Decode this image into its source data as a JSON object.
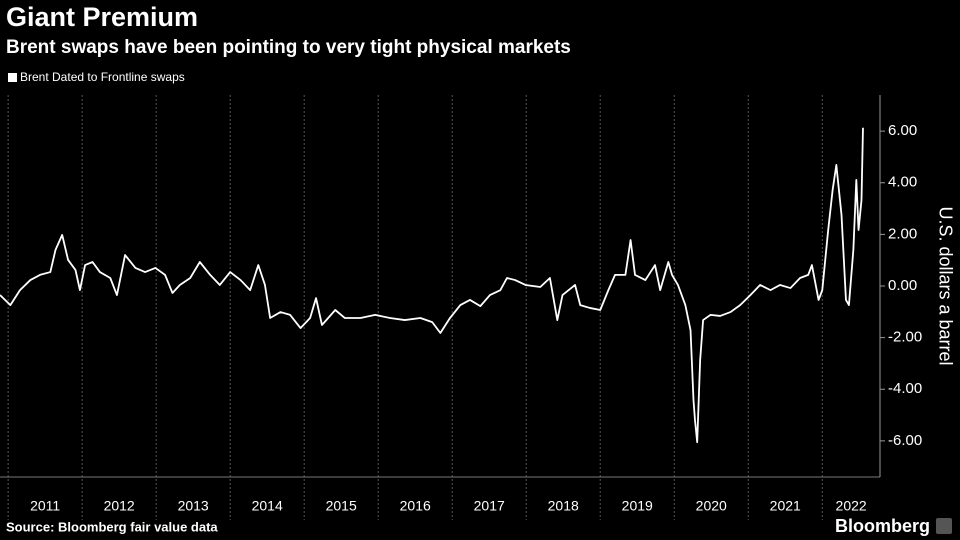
{
  "chart_data": {
    "type": "line",
    "title": "Giant Premium",
    "subtitle": "Brent swaps have been pointing to very tight physical markets",
    "y_label": "U.S. dollars a barrel",
    "source": "Source: Bloomberg fair value data",
    "logo": "Bloomberg",
    "legend": "top-left",
    "grid": true,
    "xlim": [
      2010.89,
      2022.78
    ],
    "xticks": [
      {
        "value": 2011,
        "label": "2011"
      },
      {
        "value": 2012,
        "label": "2012"
      },
      {
        "value": 2013,
        "label": "2013"
      },
      {
        "value": 2014,
        "label": "2014"
      },
      {
        "value": 2015,
        "label": "2015"
      },
      {
        "value": 2016,
        "label": "2016"
      },
      {
        "value": 2017,
        "label": "2017"
      },
      {
        "value": 2018,
        "label": "2018"
      },
      {
        "value": 2019,
        "label": "2019"
      },
      {
        "value": 2020,
        "label": "2020"
      },
      {
        "value": 2021,
        "label": "2021"
      },
      {
        "value": 2022,
        "label": "2022"
      }
    ],
    "ylim": [
      -7.4,
      7.4
    ],
    "yticks": [
      {
        "value": -6,
        "label": "-6.00"
      },
      {
        "value": -4,
        "label": "-4.00"
      },
      {
        "value": -2,
        "label": "-2.00"
      },
      {
        "value": 0,
        "label": "0.00"
      },
      {
        "value": 2,
        "label": "2.00"
      },
      {
        "value": 4,
        "label": "4.00"
      },
      {
        "value": 6,
        "label": "6.00"
      }
    ],
    "x": [
      2010.89,
      2011.03,
      2011.16,
      2011.3,
      2011.43,
      2011.57,
      2011.64,
      2011.73,
      2011.81,
      2011.91,
      2011.97,
      2012.04,
      2012.14,
      2012.24,
      2012.38,
      2012.47,
      2012.58,
      2012.72,
      2012.85,
      2012.99,
      2013.12,
      2013.22,
      2013.32,
      2013.46,
      2013.59,
      2013.73,
      2013.86,
      2014.0,
      2014.14,
      2014.27,
      2014.38,
      2014.47,
      2014.54,
      2014.68,
      2014.81,
      2014.95,
      2015.08,
      2015.16,
      2015.24,
      2015.42,
      2015.55,
      2015.76,
      2015.96,
      2016.16,
      2016.36,
      2016.57,
      2016.73,
      2016.84,
      2016.97,
      2017.11,
      2017.24,
      2017.38,
      2017.51,
      2017.65,
      2017.74,
      2017.85,
      2017.99,
      2018.19,
      2018.32,
      2018.42,
      2018.49,
      2018.66,
      2018.73,
      2018.86,
      2019.0,
      2019.11,
      2019.2,
      2019.34,
      2019.41,
      2019.47,
      2019.61,
      2019.74,
      2019.81,
      2019.92,
      2019.97,
      2020.05,
      2020.15,
      2020.22,
      2020.26,
      2020.28,
      2020.31,
      2020.35,
      2020.39,
      2020.49,
      2020.62,
      2020.76,
      2020.89,
      2021.03,
      2021.16,
      2021.3,
      2021.43,
      2021.57,
      2021.7,
      2021.81,
      2021.86,
      2021.95,
      2022.0,
      2022.08,
      2022.14,
      2022.19,
      2022.26,
      2022.32,
      2022.36,
      2022.42,
      2022.46,
      2022.49,
      2022.53,
      2022.55
    ],
    "series": [
      {
        "name": "Brent Dated to Frontline swaps",
        "color": "#ffffff",
        "values": [
          -0.35,
          -0.74,
          -0.16,
          0.23,
          0.43,
          0.54,
          1.4,
          1.98,
          1.01,
          0.62,
          -0.16,
          0.81,
          0.93,
          0.54,
          0.31,
          -0.35,
          1.2,
          0.7,
          0.54,
          0.7,
          0.43,
          -0.27,
          0.04,
          0.31,
          0.93,
          0.43,
          0.04,
          0.54,
          0.23,
          -0.16,
          0.81,
          0.04,
          -1.24,
          -1.01,
          -1.12,
          -1.63,
          -1.24,
          -0.47,
          -1.51,
          -0.93,
          -1.24,
          -1.24,
          -1.12,
          -1.24,
          -1.32,
          -1.24,
          -1.4,
          -1.82,
          -1.24,
          -0.74,
          -0.54,
          -0.78,
          -0.35,
          -0.16,
          0.31,
          0.23,
          0.04,
          -0.04,
          0.31,
          -1.32,
          -0.35,
          0.04,
          -0.74,
          -0.85,
          -0.93,
          -0.16,
          0.43,
          0.43,
          1.78,
          0.43,
          0.23,
          0.81,
          -0.16,
          0.93,
          0.43,
          0.04,
          -0.74,
          -1.71,
          -4.42,
          -5.19,
          -6.05,
          -2.87,
          -1.32,
          -1.12,
          -1.16,
          -1.01,
          -0.74,
          -0.35,
          0.04,
          -0.16,
          0.04,
          -0.08,
          0.31,
          0.43,
          0.81,
          -0.54,
          -0.16,
          2.17,
          3.72,
          4.69,
          2.75,
          -0.54,
          -0.74,
          1.4,
          4.11,
          2.17,
          3.33,
          6.13
        ]
      }
    ]
  }
}
